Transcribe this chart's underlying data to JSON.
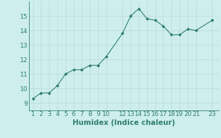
{
  "x": [
    1,
    2,
    3,
    4,
    5,
    6,
    7,
    8,
    9,
    10,
    12,
    13,
    14,
    15,
    16,
    17,
    18,
    19,
    20,
    21,
    23
  ],
  "y": [
    9.3,
    9.7,
    9.7,
    10.2,
    11.0,
    11.3,
    11.3,
    11.6,
    11.6,
    12.2,
    13.8,
    15.0,
    15.5,
    14.8,
    14.7,
    14.3,
    13.7,
    13.7,
    14.1,
    14.0,
    14.7
  ],
  "line_color": "#2e7d6e",
  "marker": "D",
  "marker_size": 2.0,
  "bg_color": "#cdeeed",
  "grid_color": "#b8d8d6",
  "xlabel": "Humidex (Indice chaleur)",
  "xlim": [
    0.5,
    23.8
  ],
  "ylim": [
    8.5,
    16.0
  ],
  "xticks": [
    1,
    2,
    3,
    4,
    5,
    6,
    7,
    8,
    9,
    10,
    12,
    13,
    14,
    15,
    16,
    17,
    18,
    19,
    20,
    21,
    23
  ],
  "yticks": [
    9,
    10,
    11,
    12,
    13,
    14,
    15
  ],
  "tick_color": "#2e7d6e",
  "tick_fontsize": 6.5,
  "xlabel_fontsize": 7.5,
  "xlabel_fontweight": "bold",
  "linewidth": 0.8
}
